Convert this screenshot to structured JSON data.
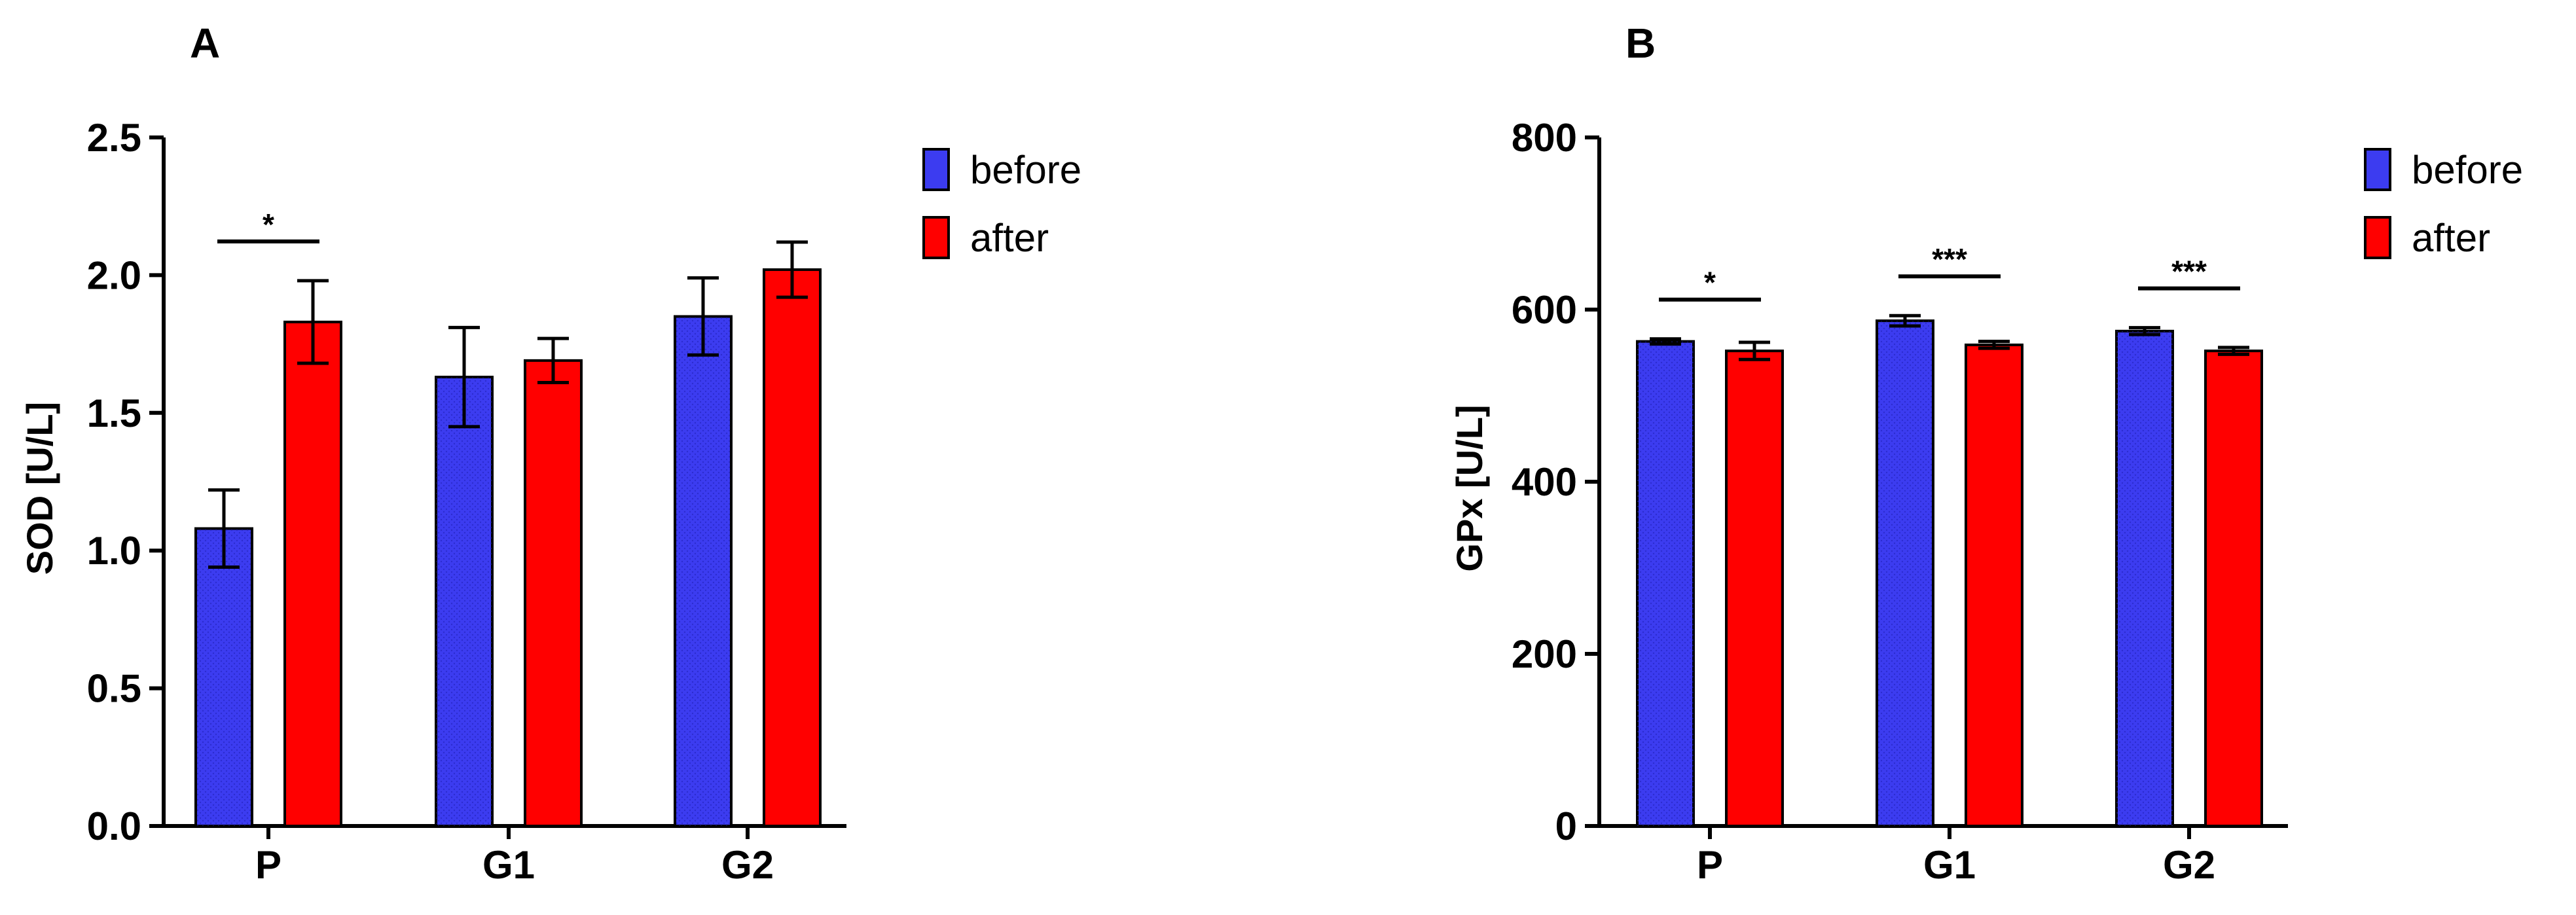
{
  "colors": {
    "before": "#3c3cf0",
    "after": "#ff0000",
    "axis": "#000000"
  },
  "legend": {
    "before": "before",
    "after": "after"
  },
  "chart_data": [
    {
      "panel_label": "A",
      "type": "bar",
      "ylabel": "SOD [U/L]",
      "ylim": [
        0,
        2.5
      ],
      "yticks": [
        "0.0",
        "0.5",
        "1.0",
        "1.5",
        "2.0",
        "2.5"
      ],
      "categories": [
        "P",
        "G1",
        "G2"
      ],
      "series": [
        {
          "name": "before",
          "values": [
            1.08,
            1.63,
            1.85
          ],
          "errors": [
            0.14,
            0.18,
            0.14
          ]
        },
        {
          "name": "after",
          "values": [
            1.83,
            1.69,
            2.02
          ],
          "errors": [
            0.15,
            0.08,
            0.1
          ]
        }
      ],
      "significance": [
        {
          "category": "P",
          "label": "*"
        }
      ],
      "legend_position": "top-right",
      "grid": false
    },
    {
      "panel_label": "B",
      "type": "bar",
      "ylabel": "GPx [U/L]",
      "ylim": [
        0,
        800
      ],
      "yticks": [
        "0",
        "200",
        "400",
        "600",
        "800"
      ],
      "categories": [
        "P",
        "G1",
        "G2"
      ],
      "series": [
        {
          "name": "before",
          "values": [
            563,
            587,
            575
          ],
          "errors": [
            3,
            6,
            4
          ]
        },
        {
          "name": "after",
          "values": [
            552,
            559,
            552
          ],
          "errors": [
            10,
            4,
            4
          ]
        }
      ],
      "significance": [
        {
          "category": "P",
          "label": "*"
        },
        {
          "category": "G1",
          "label": "***"
        },
        {
          "category": "G2",
          "label": "***"
        }
      ],
      "legend_position": "top-right",
      "grid": false
    }
  ]
}
